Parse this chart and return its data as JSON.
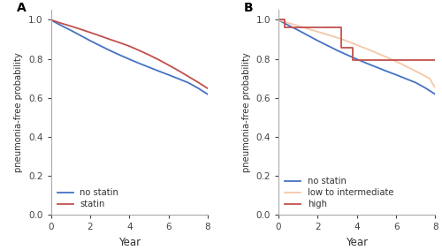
{
  "panel_A": {
    "label": "A",
    "no_statin": {
      "x": [
        0,
        0.2,
        0.5,
        1,
        1.5,
        2,
        2.5,
        3,
        3.5,
        4,
        4.5,
        5,
        5.5,
        6,
        6.5,
        7,
        7.5,
        8
      ],
      "y": [
        1.0,
        0.988,
        0.972,
        0.947,
        0.92,
        0.893,
        0.868,
        0.843,
        0.82,
        0.798,
        0.777,
        0.757,
        0.737,
        0.718,
        0.698,
        0.678,
        0.65,
        0.618
      ],
      "color": "#4472C4",
      "label": "no statin"
    },
    "statin": {
      "x": [
        0,
        0.2,
        0.5,
        1,
        1.5,
        2,
        2.5,
        3,
        3.5,
        4,
        4.5,
        5,
        5.5,
        6,
        6.5,
        7,
        7.5,
        8
      ],
      "y": [
        1.0,
        0.993,
        0.983,
        0.968,
        0.952,
        0.935,
        0.918,
        0.9,
        0.883,
        0.865,
        0.843,
        0.82,
        0.795,
        0.768,
        0.74,
        0.71,
        0.68,
        0.648
      ],
      "color": "#C0504D",
      "label": "statin"
    },
    "xlabel": "Year",
    "ylabel": "pneumonia-free probability",
    "xlim": [
      0,
      8
    ],
    "ylim": [
      0.0,
      1.05
    ],
    "xticks": [
      0,
      2,
      4,
      6,
      8
    ],
    "yticks": [
      0.0,
      0.2,
      0.4,
      0.6,
      0.8,
      1.0
    ]
  },
  "panel_B": {
    "label": "B",
    "no_statin": {
      "x": [
        0,
        0.2,
        0.5,
        1,
        1.5,
        2,
        2.5,
        3,
        3.5,
        4,
        4.5,
        5,
        5.5,
        6,
        6.5,
        7,
        7.5,
        8
      ],
      "y": [
        1.0,
        0.988,
        0.972,
        0.947,
        0.92,
        0.893,
        0.868,
        0.843,
        0.82,
        0.798,
        0.777,
        0.757,
        0.737,
        0.718,
        0.698,
        0.678,
        0.65,
        0.618
      ],
      "color": "#4472C4",
      "label": "no statin"
    },
    "low_to_intermediate": {
      "x": [
        0,
        0.3,
        0.7,
        1.2,
        1.7,
        2.2,
        2.7,
        3.2,
        3.7,
        4.2,
        4.7,
        5.2,
        5.7,
        6.2,
        6.7,
        7.2,
        7.7,
        8.0
      ],
      "y": [
        1.0,
        0.99,
        0.978,
        0.963,
        0.948,
        0.933,
        0.918,
        0.902,
        0.883,
        0.863,
        0.843,
        0.822,
        0.8,
        0.777,
        0.752,
        0.726,
        0.7,
        0.65
      ],
      "color": "#F4C8A8",
      "label": "low to intermediate"
    },
    "high": {
      "x": [
        0,
        0.3,
        0.3,
        3.2,
        3.2,
        3.8,
        3.8,
        5.0,
        5.0,
        8.0
      ],
      "y": [
        1.0,
        1.0,
        0.96,
        0.96,
        0.855,
        0.855,
        0.795,
        0.795,
        0.792,
        0.792
      ],
      "color": "#C0504D",
      "label": "high"
    },
    "xlabel": "Year",
    "ylabel": "pneumonia-free probability",
    "xlim": [
      0,
      8
    ],
    "ylim": [
      0.0,
      1.05
    ],
    "xticks": [
      0,
      2,
      4,
      6,
      8
    ],
    "yticks": [
      0.0,
      0.2,
      0.4,
      0.6,
      0.8,
      1.0
    ]
  },
  "background_color": "#ffffff",
  "linewidth": 1.3,
  "spine_color": "#AAAAAA",
  "tick_color": "#444444",
  "label_color": "#333333"
}
